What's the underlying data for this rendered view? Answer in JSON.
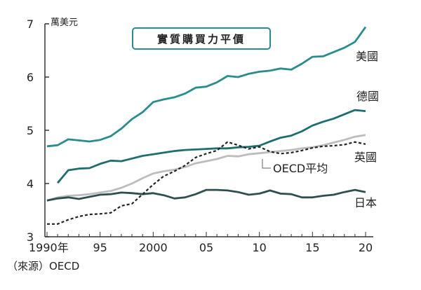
{
  "chart_data": {
    "type": "line",
    "title": "實質購買力平價",
    "unit": "萬美元",
    "source": "（來源）OECD",
    "x_tick_labels": [
      "1990年",
      "95",
      "2000",
      "05",
      "10",
      "15",
      "20"
    ],
    "y_tick_labels": [
      "3",
      "4",
      "5",
      "6",
      "7"
    ],
    "xlim": [
      1990,
      2020
    ],
    "ylim": [
      3,
      7
    ],
    "grid": false,
    "x": [
      1990,
      1991,
      1992,
      1993,
      1994,
      1995,
      1996,
      1997,
      1998,
      1999,
      2000,
      2001,
      2002,
      2003,
      2004,
      2005,
      2006,
      2007,
      2008,
      2009,
      2010,
      2011,
      2012,
      2013,
      2014,
      2015,
      2016,
      2017,
      2018,
      2019,
      2020
    ],
    "series": [
      {
        "name": "美國",
        "color": "#2a8c8c",
        "style": "solid",
        "x": [
          1990,
          1991,
          1992,
          1993,
          1994,
          1995,
          1996,
          1997,
          1998,
          1999,
          2000,
          2001,
          2002,
          2003,
          2004,
          2005,
          2006,
          2007,
          2008,
          2009,
          2010,
          2011,
          2012,
          2013,
          2014,
          2015,
          2016,
          2017,
          2018,
          2019,
          2020
        ],
        "values": [
          4.7,
          4.72,
          4.83,
          4.81,
          4.79,
          4.82,
          4.89,
          5.03,
          5.21,
          5.34,
          5.53,
          5.58,
          5.62,
          5.69,
          5.8,
          5.82,
          5.9,
          6.02,
          6.0,
          6.06,
          6.1,
          6.12,
          6.16,
          6.14,
          6.25,
          6.38,
          6.39,
          6.47,
          6.55,
          6.66,
          6.94
        ]
      },
      {
        "name": "德國",
        "color": "#1f6e6e",
        "style": "solid",
        "x": [
          1991,
          1992,
          1993,
          1994,
          1995,
          1996,
          1997,
          1998,
          1999,
          2000,
          2001,
          2002,
          2003,
          2004,
          2005,
          2006,
          2007,
          2008,
          2009,
          2010,
          2011,
          2012,
          2013,
          2014,
          2015,
          2016,
          2017,
          2018,
          2019,
          2020
        ],
        "values": [
          4.01,
          4.25,
          4.28,
          4.29,
          4.37,
          4.43,
          4.42,
          4.47,
          4.52,
          4.55,
          4.58,
          4.61,
          4.63,
          4.64,
          4.65,
          4.66,
          4.66,
          4.68,
          4.69,
          4.71,
          4.79,
          4.86,
          4.9,
          4.98,
          5.09,
          5.16,
          5.22,
          5.3,
          5.38,
          5.36
        ]
      },
      {
        "name": "OECD平均",
        "color": "#bdbdbd",
        "style": "solid",
        "x": [
          1990,
          1991,
          1992,
          1993,
          1994,
          1995,
          1996,
          1997,
          1998,
          1999,
          2000,
          2001,
          2002,
          2003,
          2004,
          2005,
          2006,
          2007,
          2008,
          2009,
          2010,
          2011,
          2012,
          2013,
          2014,
          2015,
          2016,
          2017,
          2018,
          2019,
          2020
        ],
        "values": [
          3.68,
          3.74,
          3.77,
          3.78,
          3.8,
          3.83,
          3.86,
          3.92,
          4.0,
          4.1,
          4.19,
          4.23,
          4.26,
          4.31,
          4.38,
          4.42,
          4.46,
          4.52,
          4.51,
          4.55,
          4.57,
          4.59,
          4.61,
          4.63,
          4.66,
          4.68,
          4.72,
          4.77,
          4.82,
          4.88,
          4.91
        ]
      },
      {
        "name": "英國",
        "color": "#222222",
        "style": "dashed",
        "x": [
          1990,
          1991,
          1992,
          1993,
          1994,
          1995,
          1996,
          1997,
          1998,
          1999,
          2000,
          2001,
          2002,
          2003,
          2004,
          2005,
          2006,
          2007,
          2008,
          2009,
          2010,
          2011,
          2012,
          2013,
          2014,
          2015,
          2016,
          2017,
          2018,
          2019,
          2020
        ],
        "values": [
          3.24,
          3.24,
          3.32,
          3.38,
          3.42,
          3.43,
          3.45,
          3.58,
          3.62,
          3.8,
          3.98,
          4.14,
          4.23,
          4.34,
          4.49,
          4.56,
          4.62,
          4.78,
          4.72,
          4.65,
          4.69,
          4.6,
          4.56,
          4.58,
          4.62,
          4.67,
          4.7,
          4.71,
          4.73,
          4.78,
          4.74
        ]
      },
      {
        "name": "日本",
        "color": "#2f4f4f",
        "style": "solid",
        "x": [
          1990,
          1991,
          1992,
          1993,
          1994,
          1995,
          1996,
          1997,
          1998,
          1999,
          2000,
          2001,
          2002,
          2003,
          2004,
          2005,
          2006,
          2007,
          2008,
          2009,
          2010,
          2011,
          2012,
          2013,
          2014,
          2015,
          2016,
          2017,
          2018,
          2019,
          2020
        ],
        "values": [
          3.68,
          3.72,
          3.74,
          3.71,
          3.75,
          3.79,
          3.8,
          3.83,
          3.82,
          3.8,
          3.82,
          3.78,
          3.72,
          3.74,
          3.8,
          3.88,
          3.88,
          3.87,
          3.84,
          3.79,
          3.81,
          3.87,
          3.81,
          3.8,
          3.74,
          3.74,
          3.77,
          3.79,
          3.84,
          3.88,
          3.84
        ]
      }
    ]
  }
}
